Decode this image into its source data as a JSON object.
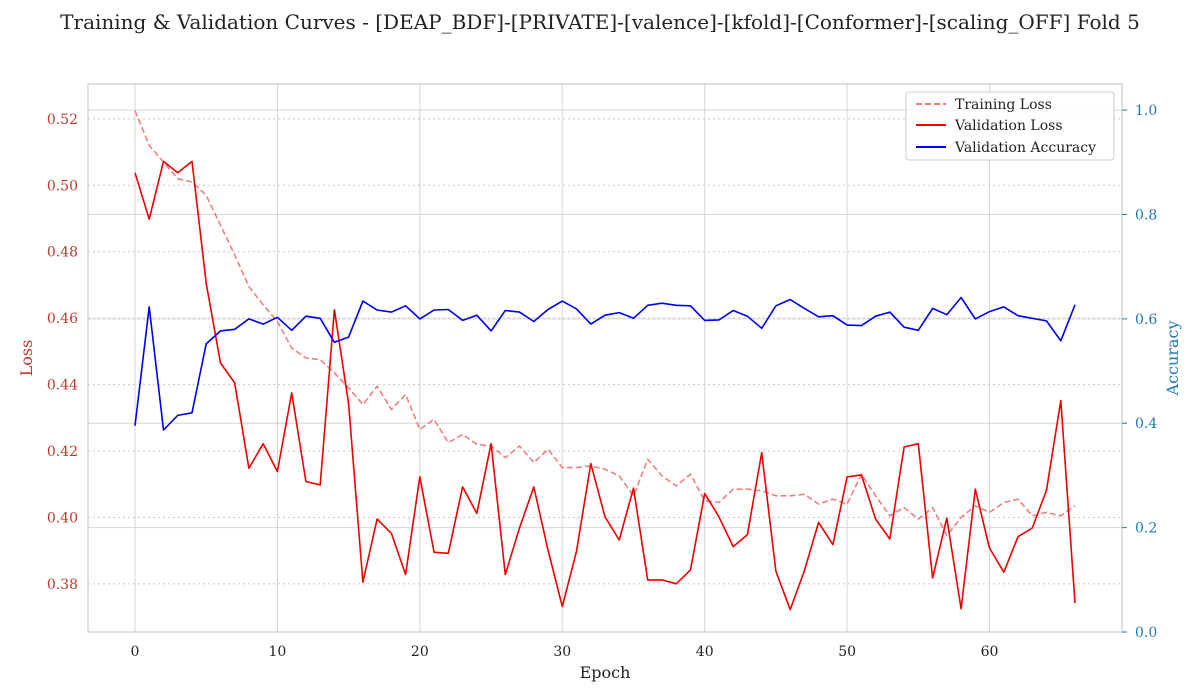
{
  "chart_data": {
    "type": "line",
    "title": "Training & Validation Curves - [DEAP_BDF]-[PRIVATE]-[valence]-[kfold]-[Conformer]-[scaling_OFF] Fold 5",
    "xlabel": "Epoch",
    "ylabel_left": "Loss",
    "ylabel_right": "Accuracy",
    "xlim": [
      -3.3,
      69.3
    ],
    "ylim_left": [
      0.3655,
      0.5305
    ],
    "ylim_right": [
      0.0,
      1.05
    ],
    "x_ticks": [
      0,
      10,
      20,
      30,
      40,
      50,
      60
    ],
    "y_ticks_left": [
      0.38,
      0.4,
      0.42,
      0.44,
      0.46,
      0.48,
      0.5,
      0.52
    ],
    "y_ticks_right": [
      0.0,
      0.2,
      0.4,
      0.6,
      0.8,
      1.0
    ],
    "grid": true,
    "legend_position": "top-right",
    "colors": {
      "training_loss": "#f07f7f",
      "validation_loss": "#ee0000",
      "validation_accuracy": "#0000ee",
      "left_axis": "#c0392b",
      "right_axis": "#1f77b4"
    },
    "series": [
      {
        "name": "Training Loss",
        "axis": "left",
        "style": "dashed",
        "x": [
          0,
          1,
          2,
          3,
          4,
          5,
          6,
          7,
          8,
          9,
          10,
          11,
          12,
          13,
          14,
          15,
          16,
          17,
          18,
          19,
          20,
          21,
          22,
          23,
          24,
          25,
          26,
          27,
          28,
          29,
          30,
          31,
          32,
          33,
          34,
          35,
          36,
          37,
          38,
          39,
          40,
          41,
          42,
          43,
          44,
          45,
          46,
          47,
          48,
          49,
          50,
          51,
          52,
          53,
          54,
          55,
          56,
          57,
          58,
          59,
          60,
          61,
          62,
          63,
          64,
          65,
          66
        ],
        "values": [
          0.5225,
          0.512,
          0.507,
          0.502,
          0.501,
          0.497,
          0.488,
          0.479,
          0.4695,
          0.464,
          0.459,
          0.451,
          0.448,
          0.4475,
          0.4435,
          0.439,
          0.434,
          0.4395,
          0.4325,
          0.437,
          0.4265,
          0.4295,
          0.4225,
          0.425,
          0.422,
          0.4215,
          0.418,
          0.4215,
          0.4165,
          0.4205,
          0.415,
          0.415,
          0.4155,
          0.4145,
          0.4125,
          0.4065,
          0.4175,
          0.4125,
          0.4095,
          0.413,
          0.405,
          0.4045,
          0.4085,
          0.4085,
          0.408,
          0.4065,
          0.4065,
          0.407,
          0.404,
          0.4055,
          0.404,
          0.413,
          0.4065,
          0.4005,
          0.403,
          0.3995,
          0.403,
          0.3945,
          0.4,
          0.4035,
          0.4015,
          0.4045,
          0.4055,
          0.4005,
          0.4015,
          0.4005,
          0.4035
        ]
      },
      {
        "name": "Validation Loss",
        "axis": "left",
        "style": "solid",
        "x": [
          0,
          1,
          2,
          3,
          4,
          5,
          6,
          7,
          8,
          9,
          10,
          11,
          12,
          13,
          14,
          15,
          16,
          17,
          18,
          19,
          20,
          21,
          22,
          23,
          24,
          25,
          26,
          27,
          28,
          29,
          30,
          31,
          32,
          33,
          34,
          35,
          36,
          37,
          38,
          39,
          40,
          41,
          42,
          43,
          44,
          45,
          46,
          47,
          48,
          49,
          50,
          51,
          52,
          53,
          54,
          55,
          56,
          57,
          58,
          59,
          60,
          61,
          62,
          63,
          64,
          65,
          66
        ],
        "values": [
          0.5038,
          0.4898,
          0.5072,
          0.5038,
          0.5072,
          0.4705,
          0.4465,
          0.4405,
          0.4148,
          0.4222,
          0.4138,
          0.4375,
          0.4108,
          0.4098,
          0.4625,
          0.4342,
          0.3805,
          0.3995,
          0.3952,
          0.3828,
          0.4122,
          0.3895,
          0.3892,
          0.4092,
          0.4012,
          0.4222,
          0.3828,
          0.3968,
          0.4092,
          0.3902,
          0.3732,
          0.3898,
          0.4162,
          0.4002,
          0.3932,
          0.4088,
          0.3812,
          0.3812,
          0.38,
          0.3842,
          0.4072,
          0.4002,
          0.3912,
          0.3948,
          0.4195,
          0.3838,
          0.3722,
          0.384,
          0.3985,
          0.3918,
          0.4122,
          0.4128,
          0.3995,
          0.3935,
          0.4212,
          0.4222,
          0.3818,
          0.3998,
          0.3725,
          0.4085,
          0.3908,
          0.3835,
          0.3942,
          0.3968,
          0.4082,
          0.4352,
          0.3742
        ]
      },
      {
        "name": "Validation Accuracy",
        "axis": "right",
        "style": "solid",
        "x": [
          0,
          1,
          2,
          3,
          4,
          5,
          6,
          7,
          8,
          9,
          10,
          11,
          12,
          13,
          14,
          15,
          16,
          17,
          18,
          19,
          20,
          21,
          22,
          23,
          24,
          25,
          26,
          27,
          28,
          29,
          30,
          31,
          32,
          33,
          34,
          35,
          36,
          37,
          38,
          39,
          40,
          41,
          42,
          43,
          44,
          45,
          46,
          47,
          48,
          49,
          50,
          51,
          52,
          53,
          54,
          55,
          56,
          57,
          58,
          59,
          60,
          61,
          62,
          63,
          64,
          65,
          66
        ],
        "values": [
          0.395,
          0.623,
          0.387,
          0.415,
          0.42,
          0.552,
          0.577,
          0.58,
          0.6,
          0.59,
          0.603,
          0.578,
          0.605,
          0.601,
          0.555,
          0.565,
          0.634,
          0.617,
          0.613,
          0.625,
          0.6,
          0.617,
          0.618,
          0.597,
          0.607,
          0.577,
          0.616,
          0.613,
          0.595,
          0.618,
          0.634,
          0.619,
          0.59,
          0.607,
          0.612,
          0.601,
          0.626,
          0.63,
          0.626,
          0.625,
          0.597,
          0.598,
          0.616,
          0.605,
          0.582,
          0.625,
          0.637,
          0.62,
          0.604,
          0.606,
          0.588,
          0.587,
          0.605,
          0.613,
          0.584,
          0.578,
          0.62,
          0.608,
          0.641,
          0.6,
          0.614,
          0.623,
          0.606,
          0.601,
          0.596,
          0.558,
          0.627
        ]
      }
    ]
  }
}
